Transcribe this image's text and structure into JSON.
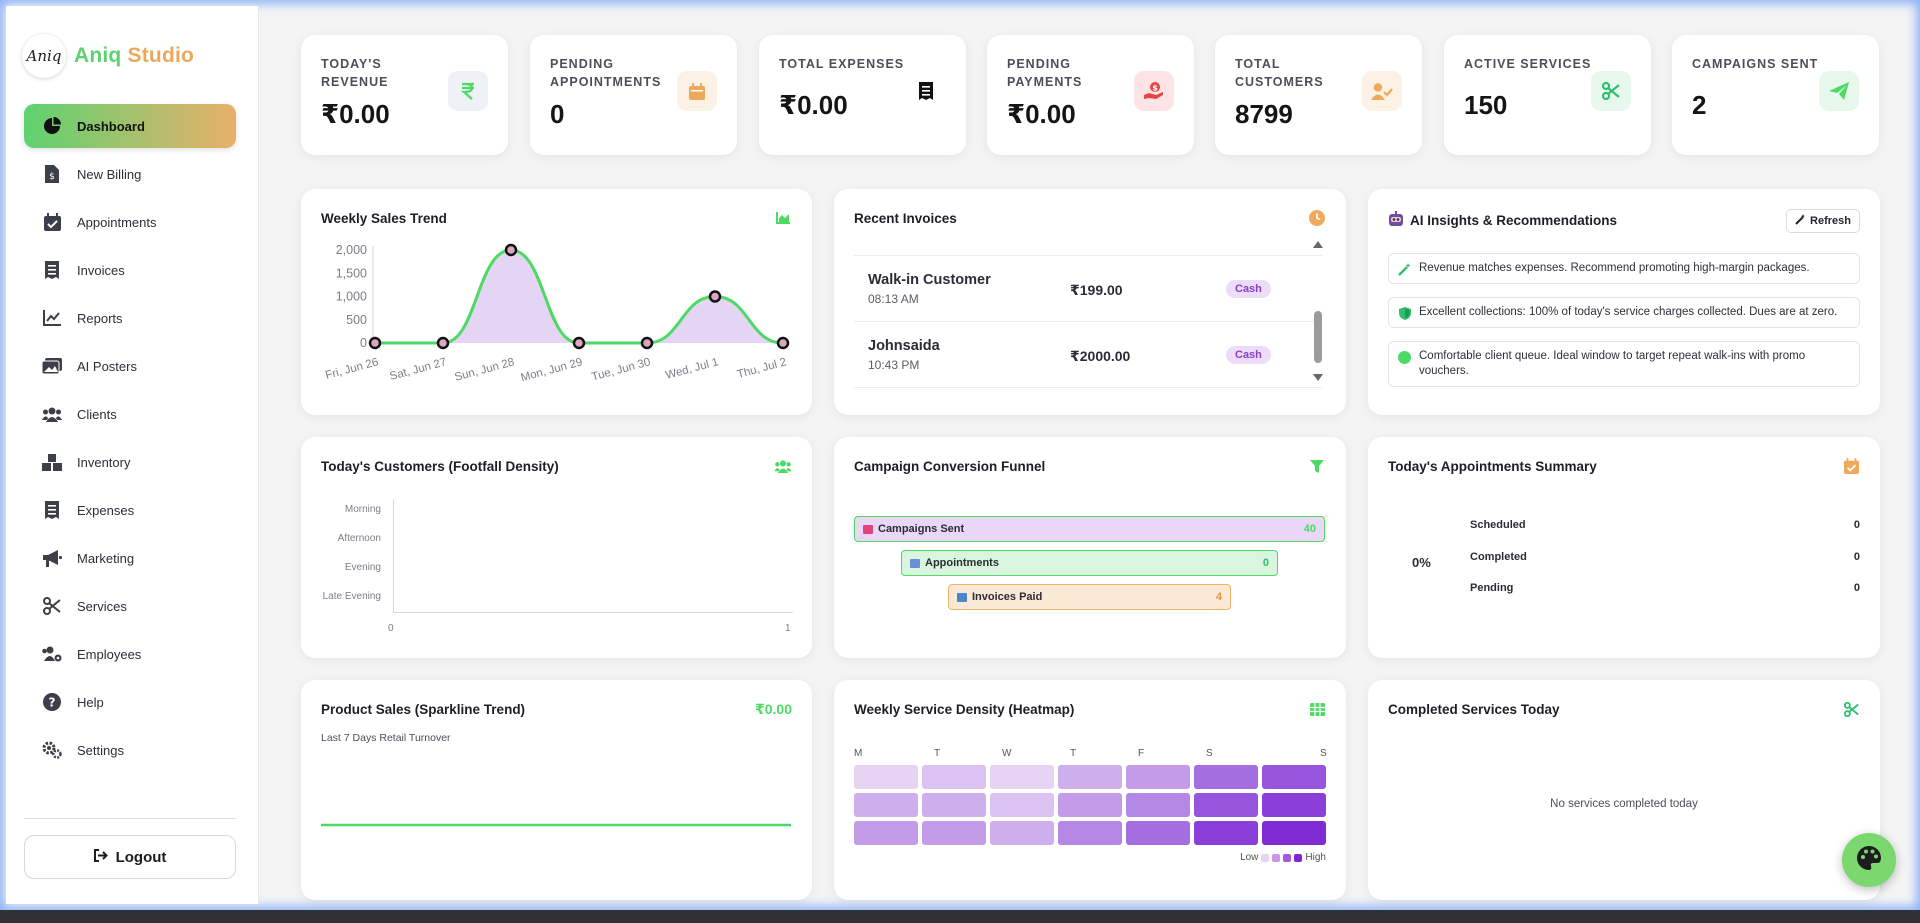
{
  "brand": {
    "logo_text": "Aniq",
    "name_part1": "Aniq",
    "name_part2": "Studio"
  },
  "sidebar": {
    "items": [
      {
        "label": "Dashboard",
        "icon": "pie-chart-icon"
      },
      {
        "label": "New Billing",
        "icon": "file-invoice-dollar-icon"
      },
      {
        "label": "Appointments",
        "icon": "calendar-check-icon"
      },
      {
        "label": "Invoices",
        "icon": "receipt-icon"
      },
      {
        "label": "Reports",
        "icon": "line-chart-icon"
      },
      {
        "label": "AI Posters",
        "icon": "images-icon"
      },
      {
        "label": "Clients",
        "icon": "users-icon"
      },
      {
        "label": "Inventory",
        "icon": "boxes-icon"
      },
      {
        "label": "Expenses",
        "icon": "receipt-icon"
      },
      {
        "label": "Marketing",
        "icon": "bullhorn-icon"
      },
      {
        "label": "Services",
        "icon": "scissors-icon"
      },
      {
        "label": "Employees",
        "icon": "users-cog-icon"
      },
      {
        "label": "Help",
        "icon": "question-circle-icon"
      },
      {
        "label": "Settings",
        "icon": "cogs-icon"
      }
    ],
    "logout_label": "Logout"
  },
  "stats": [
    {
      "label": "TODAY'S REVENUE",
      "value": "₹0.00",
      "icon": "rupee-icon"
    },
    {
      "label": "PENDING APPOINTMENTS",
      "value": "0",
      "icon": "calendar-icon"
    },
    {
      "label": "TOTAL EXPENSES",
      "value": "₹0.00",
      "icon": "receipt-icon"
    },
    {
      "label": "PENDING PAYMENTS",
      "value": "₹0.00",
      "icon": "hand-holding-dollar-icon"
    },
    {
      "label": "TOTAL CUSTOMERS",
      "value": "8799",
      "icon": "user-check-icon"
    },
    {
      "label": "ACTIVE SERVICES",
      "value": "150",
      "icon": "scissors-icon"
    },
    {
      "label": "CAMPAIGNS SENT",
      "value": "2",
      "icon": "paper-plane-icon"
    }
  ],
  "weekly_sales": {
    "title": "Weekly Sales Trend",
    "icon": "area-chart-icon"
  },
  "chart_data": [
    {
      "type": "area",
      "title": "Weekly Sales Trend",
      "categories": [
        "Fri, Jun 26",
        "Sat, Jun 27",
        "Sun, Jun 28",
        "Mon, Jun 29",
        "Tue, Jun 30",
        "Wed, Jul 1",
        "Thu, Jul 2"
      ],
      "values": [
        0,
        0,
        2000,
        0,
        0,
        1000,
        0
      ],
      "yticks": [
        "2,000",
        "1,500",
        "1,000",
        "500",
        "0"
      ],
      "ylim": [
        0,
        2000
      ],
      "colors": {
        "line": "#4cd964",
        "fill": "#e3d3f3"
      }
    },
    {
      "type": "heatmap",
      "title": "Today's Customers (Footfall Density)",
      "y_categories": [
        "Morning",
        "Afternoon",
        "Evening",
        "Late Evening"
      ],
      "x_ticks": [
        "0",
        "1"
      ],
      "values": []
    },
    {
      "type": "bar",
      "title": "Campaign Conversion Funnel",
      "categories": [
        "Campaigns Sent",
        "Appointments",
        "Invoices Paid"
      ],
      "values": [
        40,
        0,
        4
      ]
    },
    {
      "type": "line",
      "title": "Product Sales (Sparkline Trend)",
      "subtitle": "Last 7 Days Retail Turnover",
      "total": "₹0.00",
      "values": [
        0,
        0,
        0,
        0,
        0,
        0,
        0
      ]
    },
    {
      "type": "heatmap",
      "title": "Weekly Service Density (Heatmap)",
      "x_categories": [
        "M",
        "T",
        "W",
        "T",
        "F",
        "S",
        "S"
      ],
      "rows": 3,
      "values": [
        [
          1,
          2,
          1,
          3,
          4,
          6,
          7
        ],
        [
          3,
          3,
          2,
          4,
          5,
          7,
          8
        ],
        [
          4,
          4,
          3,
          5,
          6,
          8,
          9
        ]
      ],
      "legend": {
        "low": "Low",
        "high": "High"
      }
    }
  ],
  "recent_invoices": {
    "title": "Recent Invoices",
    "rows": [
      {
        "name": "Walk-in Customer",
        "time": "08:13 AM",
        "amount": "₹199.00",
        "method": "Cash"
      },
      {
        "name": "Johnsaida",
        "time": "10:43 PM",
        "amount": "₹2000.00",
        "method": "Cash"
      }
    ]
  },
  "ai_insights": {
    "title": "AI Insights & Recommendations",
    "refresh_label": "Refresh",
    "items": [
      {
        "text": "Revenue matches expenses. Recommend promoting high-margin packages.",
        "icon": "magic-wand-icon"
      },
      {
        "text": "Excellent collections: 100% of today's service charges collected. Dues are at zero.",
        "icon": "shield-icon"
      },
      {
        "text": "Comfortable client queue. Ideal window to target repeat walk-ins with promo vouchers.",
        "icon": "green-dot-icon"
      }
    ]
  },
  "footfall": {
    "title": "Today's Customers (Footfall Density)"
  },
  "funnel": {
    "title": "Campaign Conversion Funnel",
    "items": [
      {
        "label": "Campaigns Sent",
        "value": "40"
      },
      {
        "label": "Appointments",
        "value": "0"
      },
      {
        "label": "Invoices Paid",
        "value": "4"
      }
    ]
  },
  "appointments_summary": {
    "title": "Today's Appointments Summary",
    "percent": "0%",
    "rows": [
      {
        "label": "Scheduled",
        "value": "0"
      },
      {
        "label": "Completed",
        "value": "0"
      },
      {
        "label": "Pending",
        "value": "0"
      }
    ]
  },
  "product_sales": {
    "title": "Product Sales (Sparkline Trend)",
    "total": "₹0.00",
    "subtitle": "Last 7 Days Retail Turnover"
  },
  "heatmap": {
    "title": "Weekly Service Density (Heatmap)",
    "low": "Low",
    "high": "High"
  },
  "completed_services": {
    "title": "Completed Services Today",
    "empty_text": "No services completed today"
  },
  "colors": {
    "brand_green": "#5ed26f",
    "brand_orange": "#e9a95c",
    "accent_purple": "#8a3fc4"
  }
}
